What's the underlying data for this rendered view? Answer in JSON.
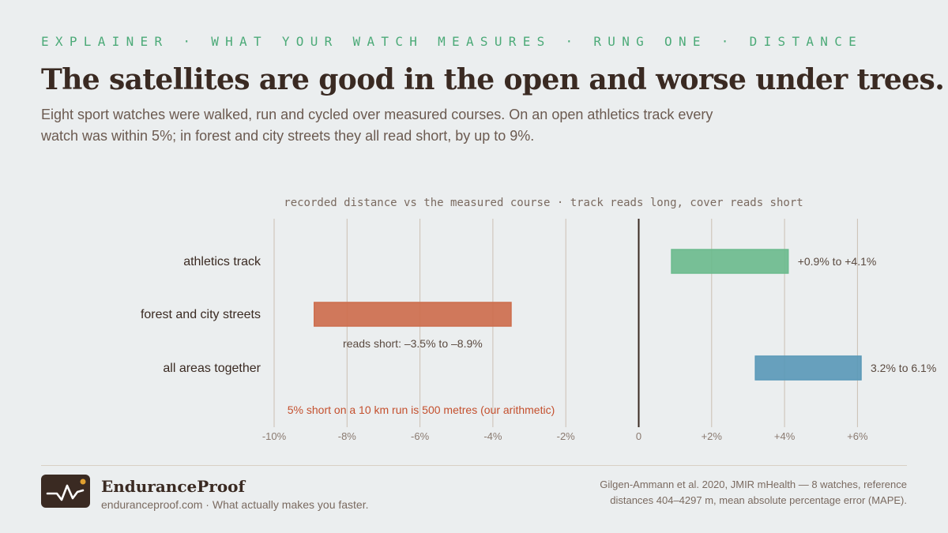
{
  "header": {
    "kicker": "EXPLAINER · WHAT YOUR WATCH MEASURES · RUNG ONE · DISTANCE",
    "title": "The satellites are good in the open and worse under trees.",
    "subtitle": "Eight sport watches were walked, run and cycled over measured courses. On an open athletics track every watch was within 5%; in forest and city streets they all read short, by up to 9%."
  },
  "chart_data": {
    "type": "bar",
    "subtitle": "recorded distance vs the measured course · track reads long, cover reads short",
    "xlim": [
      -10,
      6.5
    ],
    "xticks": [
      -10,
      -8,
      -6,
      -4,
      -2,
      0,
      2,
      4,
      6
    ],
    "xtick_labels": [
      "-10%",
      "-8%",
      "-6%",
      "-4%",
      "-2%",
      "0",
      "+2%",
      "+4%",
      "+6%"
    ],
    "grid": true,
    "categories": [
      "athletics track",
      "forest and city streets",
      "all areas together"
    ],
    "ranges": [
      {
        "category": "athletics track",
        "min": 0.9,
        "max": 4.1,
        "label": "+0.9% to +4.1%",
        "color": "#6cbb8e",
        "label_position": "right"
      },
      {
        "category": "forest and city streets",
        "min": -8.9,
        "max": -3.5,
        "label": "reads short: –3.5% to –8.9%",
        "color": "#cd6e4e",
        "label_position": "below"
      },
      {
        "category": "all areas together",
        "min": 3.2,
        "max": 6.1,
        "label": "3.2% to 6.1%",
        "color": "#5b99b8",
        "label_position": "right"
      }
    ],
    "annotation": {
      "text": "5% short on a 10 km run is 500 metres (our arithmetic)",
      "color": "#c4502e"
    }
  },
  "footer": {
    "brand": "EnduranceProof",
    "tagline": "enduranceproof.com · What actually makes you faster.",
    "source": "Gilgen-Ammann et al. 2020, JMIR mHealth — 8 watches, reference distances 404–4297 m, mean absolute percentage error (MAPE)."
  },
  "logo": {
    "icon": "heartbeat-pulse-icon",
    "accent": "#e0a030"
  }
}
